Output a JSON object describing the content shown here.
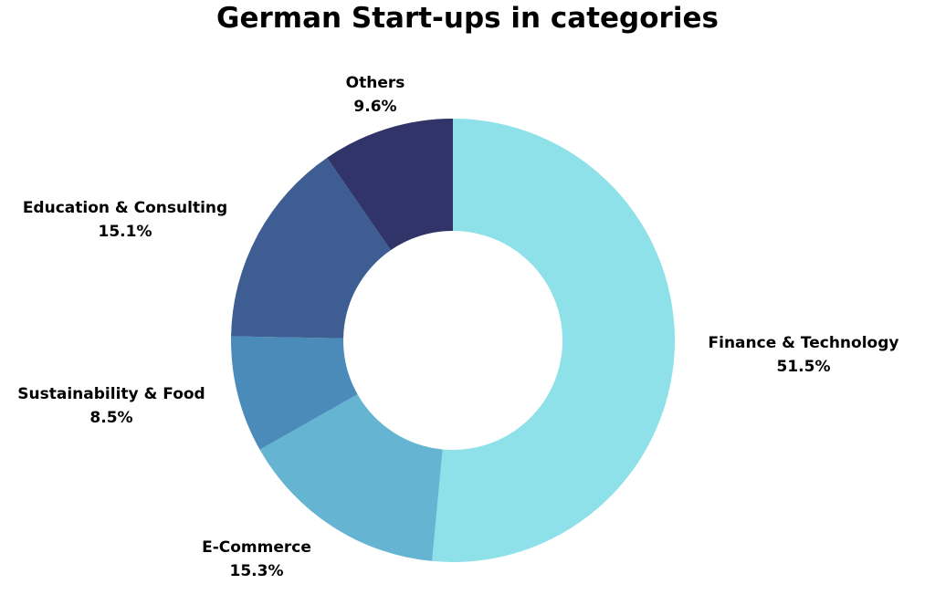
{
  "chart_data": {
    "type": "pie",
    "variant": "donut",
    "title": "German Start-ups in categories",
    "start_position": "12 o'clock",
    "direction": "clockwise",
    "slices": [
      {
        "label": "Finance & Technology",
        "value": 51.5,
        "value_label": "51.5%",
        "color": "#8ee1e8"
      },
      {
        "label": "E-Commerce",
        "value": 15.3,
        "value_label": "15.3%",
        "color": "#64b4d2"
      },
      {
        "label": "Sustainability & Food",
        "value": 8.5,
        "value_label": "8.5%",
        "color": "#4a8bba"
      },
      {
        "label": "Education & Consulting",
        "value": 15.1,
        "value_label": "15.1%",
        "color": "#3d5d93"
      },
      {
        "label": "Others",
        "value": 9.6,
        "value_label": "9.6%",
        "color": "#303468"
      }
    ],
    "legend": "none",
    "labels": "outside"
  }
}
